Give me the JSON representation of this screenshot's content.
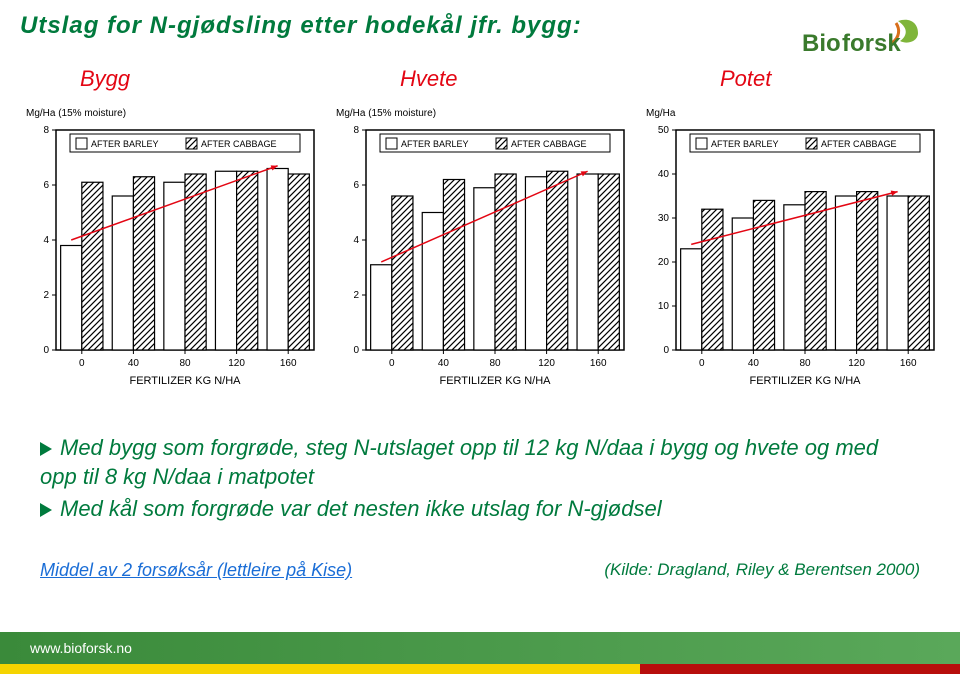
{
  "title": "Utslag for N-gjødsling etter hodekål jfr. bygg:",
  "logo_text": "Bioforsk",
  "logo_colors": {
    "word": "#3a7a2c",
    "leaf": "#7fb53a",
    "accent": "#d86f1a"
  },
  "crops": {
    "bygg": "Bygg",
    "hvete": "Hvete",
    "potet": "Potet"
  },
  "crop_label_color": "#e30613",
  "axis_label": "FERTILIZER KG N/HA",
  "legend_barley": "AFTER BARLEY",
  "legend_cabbage": "AFTER CABBAGE",
  "charts": [
    {
      "id": "bygg",
      "yunit": "Mg/Ha (15% moisture)",
      "ymax": 8,
      "ytick": 2,
      "xticks": [
        0,
        40,
        80,
        120,
        160
      ],
      "series": [
        {
          "name": "barley",
          "fill": "#ffffff",
          "stroke": "#000000",
          "values": [
            3.8,
            5.6,
            6.1,
            6.5,
            6.6
          ]
        },
        {
          "name": "cabbage",
          "fill": "hatch",
          "stroke": "#000000",
          "values": [
            6.1,
            6.3,
            6.4,
            6.5,
            6.4
          ]
        }
      ],
      "trend": {
        "from": [
          0,
          4.0
        ],
        "to": [
          160,
          6.7
        ],
        "color": "#e30613"
      }
    },
    {
      "id": "hvete",
      "yunit": "Mg/Ha (15% moisture)",
      "ymax": 8,
      "ytick": 2,
      "xticks": [
        0,
        40,
        80,
        120,
        160
      ],
      "series": [
        {
          "name": "barley",
          "fill": "#ffffff",
          "stroke": "#000000",
          "values": [
            3.1,
            5.0,
            5.9,
            6.3,
            6.4
          ]
        },
        {
          "name": "cabbage",
          "fill": "hatch",
          "stroke": "#000000",
          "values": [
            5.6,
            6.2,
            6.4,
            6.5,
            6.4
          ]
        }
      ],
      "trend": {
        "from": [
          0,
          3.2
        ],
        "to": [
          160,
          6.5
        ],
        "color": "#e30613"
      }
    },
    {
      "id": "potet",
      "yunit": "Mg/Ha",
      "ymax": 50,
      "ytick": 10,
      "xticks": [
        0,
        40,
        80,
        120,
        160
      ],
      "series": [
        {
          "name": "barley",
          "fill": "#ffffff",
          "stroke": "#000000",
          "values": [
            23,
            30,
            33,
            35,
            35
          ]
        },
        {
          "name": "cabbage",
          "fill": "hatch",
          "stroke": "#000000",
          "values": [
            32,
            34,
            36,
            36,
            35
          ]
        }
      ],
      "trend": {
        "from": [
          0,
          24
        ],
        "to": [
          160,
          36
        ],
        "color": "#e30613"
      }
    }
  ],
  "chart_style": {
    "bg": "#ffffff",
    "axis_color": "#000000",
    "axis_width": 1.5,
    "bar_stroke_width": 1.2,
    "font_size_axis": 10,
    "font_size_unit": 10,
    "font_size_legend": 9,
    "legend_box": 11,
    "trend_width": 1.5
  },
  "bul1": "Med bygg som forgrøde, steg N-utslaget opp til 12 kg N/daa i bygg og hvete og med opp til 8 kg N/daa i matpotet",
  "bul2": "Med kål som forgrøde var det nesten ikke utslag for N-gjødsel",
  "footnote_left": "Middel av 2 forsøksår (lettleire på Kise)",
  "footnote_right": "(Kilde: Dragland, Riley & Berentsen 2000)",
  "footer_link": "www.bioforsk.no",
  "footer": {
    "green1": "#3a8a3a",
    "green2": "#5aa85a",
    "yellow": "#f5d400",
    "red": "#b70e0c",
    "yellow_width": 640,
    "red_start": 640
  }
}
